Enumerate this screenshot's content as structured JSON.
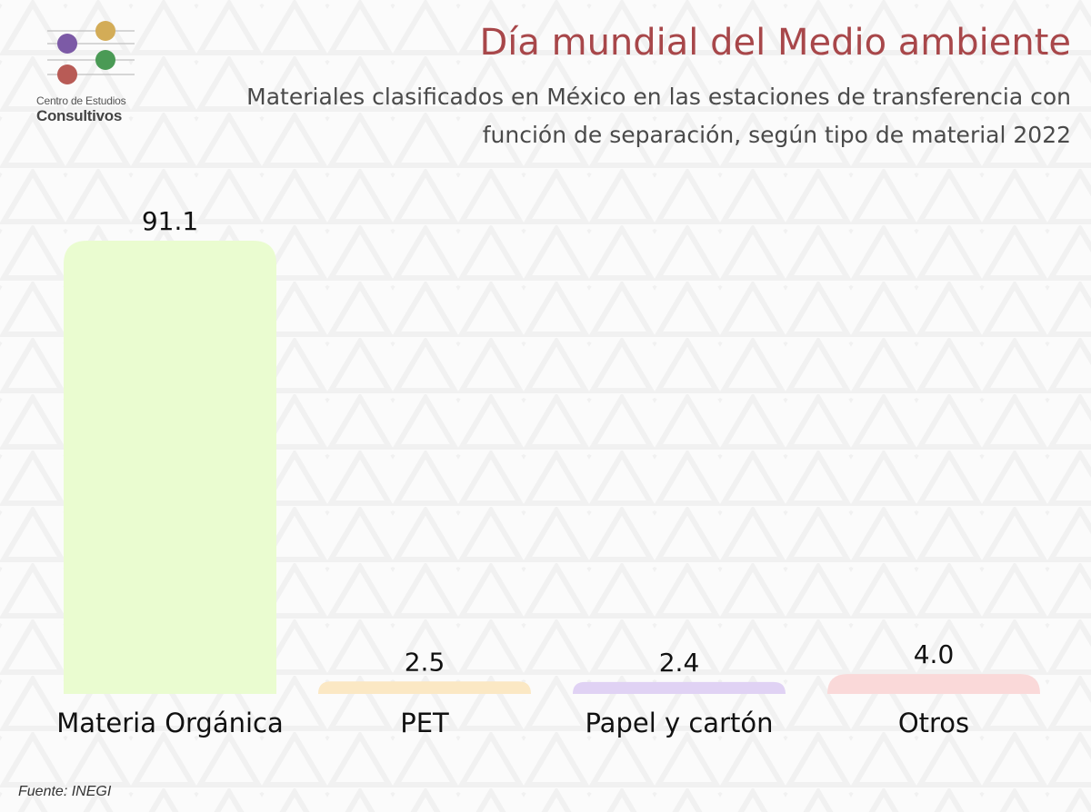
{
  "header": {
    "title": "Día mundial del Medio ambiente",
    "subtitle_line1": "Materiales clasificados en México en las estaciones de transferencia con",
    "subtitle_line2": "función de separación, según tipo de material 2022"
  },
  "logo": {
    "small_text": "Centro de Estudios",
    "big_text": "Consultivos",
    "dot_colors": [
      "#7c5aa6",
      "#d3ac57",
      "#b85b56",
      "#4a9a55"
    ]
  },
  "footer": {
    "source": "Fuente: INEGI"
  },
  "chart_data": {
    "type": "bar",
    "title": "Día mundial del Medio ambiente",
    "subtitle": "Materiales clasificados en México en las estaciones de transferencia con función de separación, según tipo de material 2022",
    "categories": [
      "Materia Orgánica",
      "PET",
      "Papel y cartón",
      "Otros"
    ],
    "values": [
      91.1,
      2.5,
      2.4,
      4.0
    ],
    "value_labels": [
      "91.1",
      "2.5",
      "2.4",
      "4.0"
    ],
    "colors": [
      "#eafcd0",
      "#fbe8c4",
      "#e0d2f4",
      "#fad9d9"
    ],
    "xlabel": "",
    "ylabel": "",
    "ylim": [
      0,
      91.1
    ],
    "grid": false,
    "legend": "none"
  }
}
